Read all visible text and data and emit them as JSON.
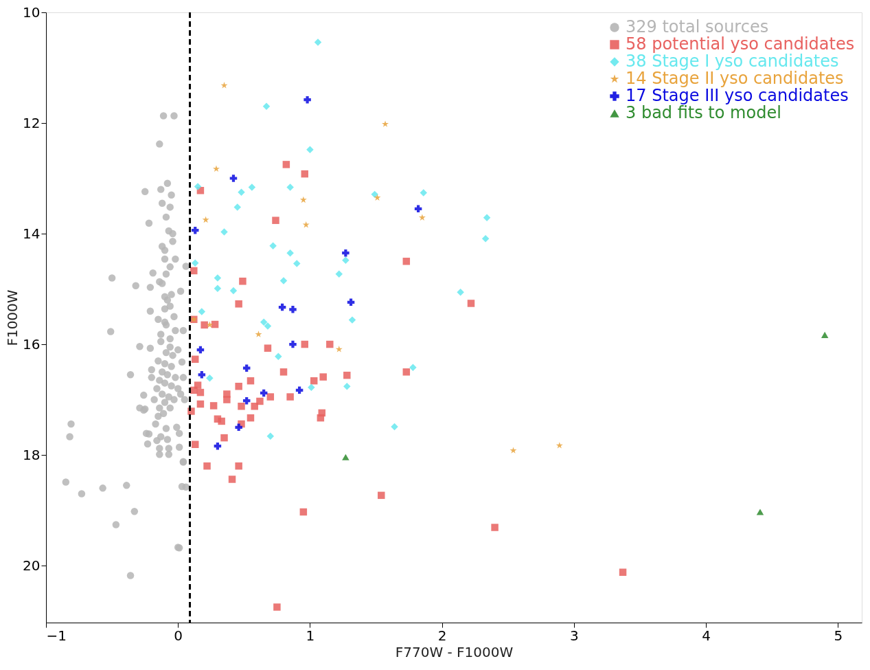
{
  "chart_data": {
    "type": "scatter",
    "xlabel": "F770W - F1000W",
    "ylabel": "F1000W",
    "xlim": [
      -1,
      5.18
    ],
    "ylim": [
      21.03,
      10
    ],
    "xticks": [
      -1,
      0,
      1,
      2,
      3,
      4,
      5
    ],
    "yticks": [
      10,
      12,
      14,
      16,
      18,
      20
    ],
    "legend": "top right",
    "ref_lines": [
      {
        "axis": "x",
        "value": 0.09,
        "color": "#000000",
        "line_style": "dashed"
      }
    ],
    "series": [
      {
        "name": "329 total sources",
        "color": "#b5b5b5",
        "marker": "circle",
        "x": [
          -0.11,
          -0.03,
          -0.14,
          -0.25,
          -0.5,
          -0.32,
          -0.51,
          -0.81,
          -0.82,
          -0.85,
          -0.73,
          -0.57,
          -0.39,
          -0.33,
          -0.47,
          0.0,
          -0.36,
          0.03,
          0.04,
          -0.29,
          -0.16,
          -0.14,
          -0.07,
          -0.36,
          -0.25,
          -0.24,
          -0.21,
          -0.21,
          -0.12,
          -0.22,
          -0.12,
          -0.19,
          -0.14,
          0.02,
          0.06,
          -0.05,
          -0.08,
          -0.06,
          -0.07,
          -0.04,
          -0.02,
          -0.1,
          -0.09,
          -0.1,
          -0.05,
          -0.15,
          -0.1,
          -0.06,
          -0.09,
          -0.13,
          -0.02,
          0.04,
          -0.29,
          -0.21,
          -0.26,
          -0.26,
          -0.2,
          0.03,
          0.0,
          -0.17,
          -0.22,
          -0.23,
          -0.13,
          -0.08,
          -0.09,
          -0.01,
          0.01,
          -0.14,
          -0.07,
          0.01,
          0.04,
          0.06,
          0.01,
          -0.15,
          -0.1,
          -0.05,
          -0.12,
          -0.08,
          -0.02,
          -0.14,
          -0.1,
          -0.05,
          0.0,
          -0.16,
          -0.12,
          -0.07,
          -0.03,
          -0.18,
          -0.1,
          -0.14,
          -0.06,
          -0.11,
          0.02,
          -0.04,
          -0.09,
          -0.13,
          -0.06,
          -0.1,
          -0.03,
          -0.08,
          -0.12,
          -0.06,
          -0.1,
          -0.04,
          -0.09,
          -0.13,
          -0.06,
          0.04,
          -0.2,
          0.05,
          -0.15
        ],
        "values": [
          11.87,
          11.87,
          12.38,
          13.24,
          14.8,
          14.94,
          15.77,
          17.44,
          17.67,
          18.49,
          18.7,
          18.6,
          18.55,
          19.02,
          19.26,
          19.67,
          20.18,
          18.57,
          18.13,
          17.15,
          17.74,
          17.88,
          17.88,
          16.55,
          17.17,
          17.61,
          14.97,
          15.4,
          13.45,
          13.81,
          14.23,
          14.71,
          14.87,
          15.04,
          14.59,
          13.3,
          13.09,
          13.52,
          13.95,
          14.14,
          14.46,
          14.46,
          14.73,
          15.14,
          15.1,
          15.55,
          15.36,
          15.31,
          15.65,
          15.82,
          15.75,
          15.75,
          16.04,
          16.07,
          16.92,
          17.19,
          16.46,
          16.32,
          16.1,
          17.44,
          17.62,
          17.8,
          17.67,
          17.72,
          17.52,
          17.5,
          17.61,
          17.99,
          17.99,
          17.86,
          18.12,
          18.58,
          19.68,
          16.3,
          16.35,
          16.4,
          16.5,
          16.55,
          16.6,
          16.65,
          16.7,
          16.75,
          16.8,
          16.8,
          16.9,
          16.95,
          17.0,
          17.0,
          17.05,
          17.15,
          17.15,
          17.25,
          16.9,
          16.2,
          16.15,
          15.95,
          15.9,
          15.6,
          15.5,
          15.2,
          14.9,
          14.6,
          14.3,
          14.0,
          13.7,
          13.2,
          16.05,
          16.6,
          16.6,
          17.0,
          17.3
        ]
      },
      {
        "name": "58 potential yso candidates",
        "color": "#e8615f",
        "marker": "square",
        "x": [
          0.82,
          0.96,
          0.17,
          0.74,
          0.12,
          0.49,
          0.46,
          0.12,
          0.2,
          0.28,
          0.96,
          1.15,
          0.68,
          0.13,
          0.8,
          1.1,
          1.28,
          1.03,
          0.55,
          0.46,
          0.15,
          0.12,
          0.17,
          0.37,
          0.37,
          0.7,
          0.85,
          0.62,
          0.17,
          0.27,
          0.48,
          0.58,
          0.1,
          1.09,
          1.08,
          0.3,
          0.33,
          0.55,
          0.48,
          0.35,
          0.13,
          0.22,
          0.46,
          0.41,
          0.95,
          1.54,
          0.75,
          1.73,
          2.22,
          1.73,
          2.4,
          3.37
        ],
        "values": [
          12.75,
          12.92,
          13.22,
          13.76,
          14.67,
          14.86,
          15.27,
          15.55,
          15.65,
          15.64,
          16.0,
          16.0,
          16.07,
          16.27,
          16.5,
          16.59,
          16.56,
          16.66,
          16.66,
          16.76,
          16.74,
          16.83,
          16.87,
          16.9,
          17.0,
          16.95,
          16.95,
          17.03,
          17.08,
          17.11,
          17.12,
          17.12,
          17.21,
          17.24,
          17.33,
          17.35,
          17.39,
          17.33,
          17.44,
          17.69,
          17.81,
          18.2,
          18.2,
          18.44,
          19.03,
          18.73,
          20.75,
          14.5,
          15.26,
          16.5,
          19.31,
          20.12
        ]
      },
      {
        "name": "38 Stage I yso candidates",
        "color": "#66e8ee",
        "marker": "diamond",
        "x": [
          1.06,
          0.67,
          1.0,
          0.15,
          0.48,
          0.56,
          0.85,
          0.45,
          0.35,
          0.72,
          0.85,
          0.9,
          1.27,
          1.22,
          0.13,
          0.3,
          0.3,
          0.42,
          0.8,
          1.32,
          0.18,
          0.65,
          0.68,
          0.76,
          0.24,
          1.01,
          1.28,
          0.7,
          1.86,
          1.49,
          2.34,
          2.33,
          2.14,
          1.78,
          1.64
        ],
        "values": [
          10.54,
          11.7,
          12.48,
          13.15,
          13.25,
          13.16,
          13.16,
          13.52,
          13.97,
          14.22,
          14.35,
          14.54,
          14.48,
          14.73,
          14.53,
          14.8,
          14.99,
          15.03,
          14.85,
          15.56,
          15.41,
          15.6,
          15.67,
          16.22,
          16.61,
          16.78,
          16.76,
          17.66,
          13.26,
          13.29,
          13.71,
          14.09,
          15.06,
          16.42,
          17.49
        ]
      },
      {
        "name": "14 Stage II yso candidates",
        "color": "#e8a33c",
        "marker": "star",
        "x": [
          0.35,
          1.57,
          0.29,
          0.21,
          0.95,
          0.97,
          1.51,
          1.85,
          0.12,
          0.24,
          0.61,
          1.22,
          2.54,
          2.89
        ],
        "values": [
          11.32,
          12.02,
          12.83,
          13.75,
          13.39,
          13.84,
          13.35,
          13.71,
          15.55,
          15.65,
          15.82,
          16.09,
          17.92,
          17.83
        ]
      },
      {
        "name": "17 Stage III yso candidates",
        "color": "#0a0ae0",
        "marker": "cross",
        "x": [
          0.98,
          0.42,
          0.13,
          1.27,
          1.31,
          0.79,
          0.87,
          0.87,
          0.17,
          0.52,
          0.18,
          0.92,
          0.65,
          0.52,
          0.46,
          0.3,
          1.82
        ],
        "values": [
          11.58,
          13.0,
          13.94,
          14.35,
          15.24,
          15.33,
          15.37,
          16.0,
          16.1,
          16.43,
          16.55,
          16.83,
          16.88,
          17.02,
          17.5,
          17.84,
          13.55
        ]
      },
      {
        "name": "3 bad fits to model",
        "color": "#2e8b2e",
        "marker": "triangle",
        "x": [
          1.27,
          4.41,
          4.9
        ],
        "values": [
          18.04,
          19.03,
          15.83
        ]
      }
    ]
  }
}
